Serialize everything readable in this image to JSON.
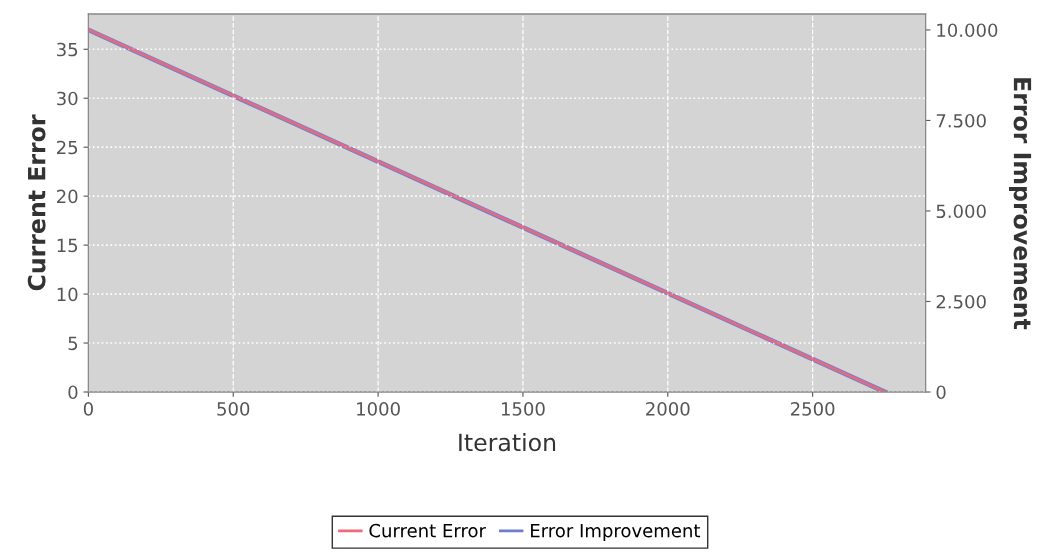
{
  "chart_data": {
    "type": "line",
    "xlabel": "Iteration",
    "ylabel": "Current Error",
    "y2label": "Error Improvement",
    "x": [
      0,
      2750
    ],
    "series": [
      {
        "name": "Error Improvement",
        "color": "#6f7fd0",
        "axis": "y2",
        "values": [
          10000,
          0
        ]
      },
      {
        "name": "Current Error",
        "color": "#f06a78",
        "values": [
          37,
          0
        ]
      }
    ],
    "xlim": [
      0,
      2890
    ],
    "xticks": [
      0,
      500,
      1000,
      1500,
      2000,
      2500
    ],
    "ylim": [
      0,
      38.6
    ],
    "yticks": [
      0,
      5,
      10,
      15,
      20,
      25,
      30,
      35
    ],
    "y2lim": [
      0,
      10440
    ],
    "y2ticks": [
      {
        "value": 0,
        "label": "0"
      },
      {
        "value": 2500,
        "label": "2.500"
      },
      {
        "value": 5000,
        "label": "5.000"
      },
      {
        "value": 7500,
        "label": "7.500"
      },
      {
        "value": 10000,
        "label": "10.000"
      }
    ],
    "grid": true,
    "legend": "bottom",
    "marker": "none",
    "line_style": "solid"
  }
}
